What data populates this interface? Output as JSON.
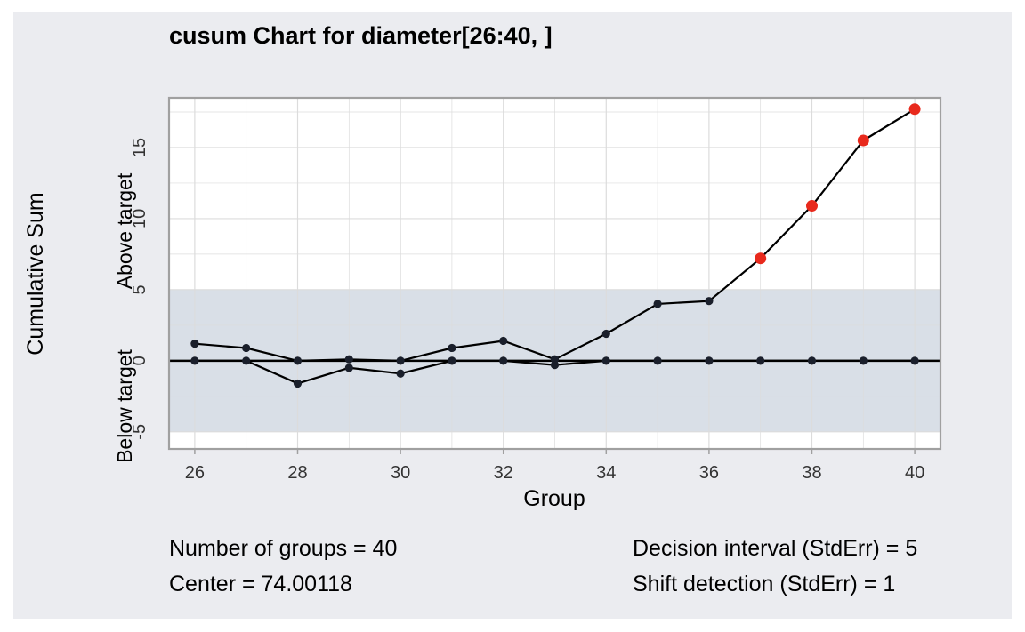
{
  "chart_data": {
    "type": "line",
    "title": "cusum Chart for diameter[26:40, ]",
    "xlabel": "Group",
    "ylabel": "Cumulative Sum",
    "ylabel_upper": "Above target",
    "ylabel_lower": "Below target",
    "x": [
      26,
      27,
      28,
      29,
      30,
      31,
      32,
      33,
      34,
      35,
      36,
      37,
      38,
      39,
      40
    ],
    "x_ticks": [
      "26",
      "28",
      "30",
      "32",
      "34",
      "36",
      "38",
      "40"
    ],
    "y_ticks": [
      "-5",
      "0",
      "5",
      "10",
      "15"
    ],
    "xlim": [
      25.5,
      40.5
    ],
    "ylim": [
      -6.2,
      18.5
    ],
    "decision_band": [
      -5,
      5
    ],
    "grid": true,
    "series": [
      {
        "values": [
          1.2,
          0.9,
          0.0,
          0.1,
          0.0,
          0.9,
          1.4,
          0.1,
          1.9,
          4.0,
          4.2,
          7.2,
          10.9,
          15.5,
          17.7
        ],
        "violations": [
          false,
          false,
          false,
          false,
          false,
          false,
          false,
          false,
          false,
          false,
          false,
          true,
          true,
          true,
          true
        ]
      },
      {
        "values": [
          0.0,
          0.0,
          -1.6,
          -0.5,
          -0.9,
          0.0,
          0.0,
          -0.3,
          0.0,
          0.0,
          0.0,
          0.0,
          0.0,
          0.0,
          0.0
        ],
        "violations": [
          false,
          false,
          false,
          false,
          false,
          false,
          false,
          false,
          false,
          false,
          false,
          false,
          false,
          false,
          false
        ]
      }
    ],
    "colors": {
      "panel_background": "#ebecf0",
      "plot_background": "#ffffff",
      "band": "#d9dfe7",
      "grid": "#dcdcdc",
      "line": "#000000",
      "point": "#1a1f2b",
      "violation": "#e8291c",
      "axis_frame": "#a0a0a0"
    }
  },
  "stats": {
    "groups": "Number of groups = 40",
    "center": "Center = 74.00118",
    "decision_interval": "Decision interval (StdErr) = 5",
    "shift_detection": "Shift detection (StdErr) = 1"
  }
}
